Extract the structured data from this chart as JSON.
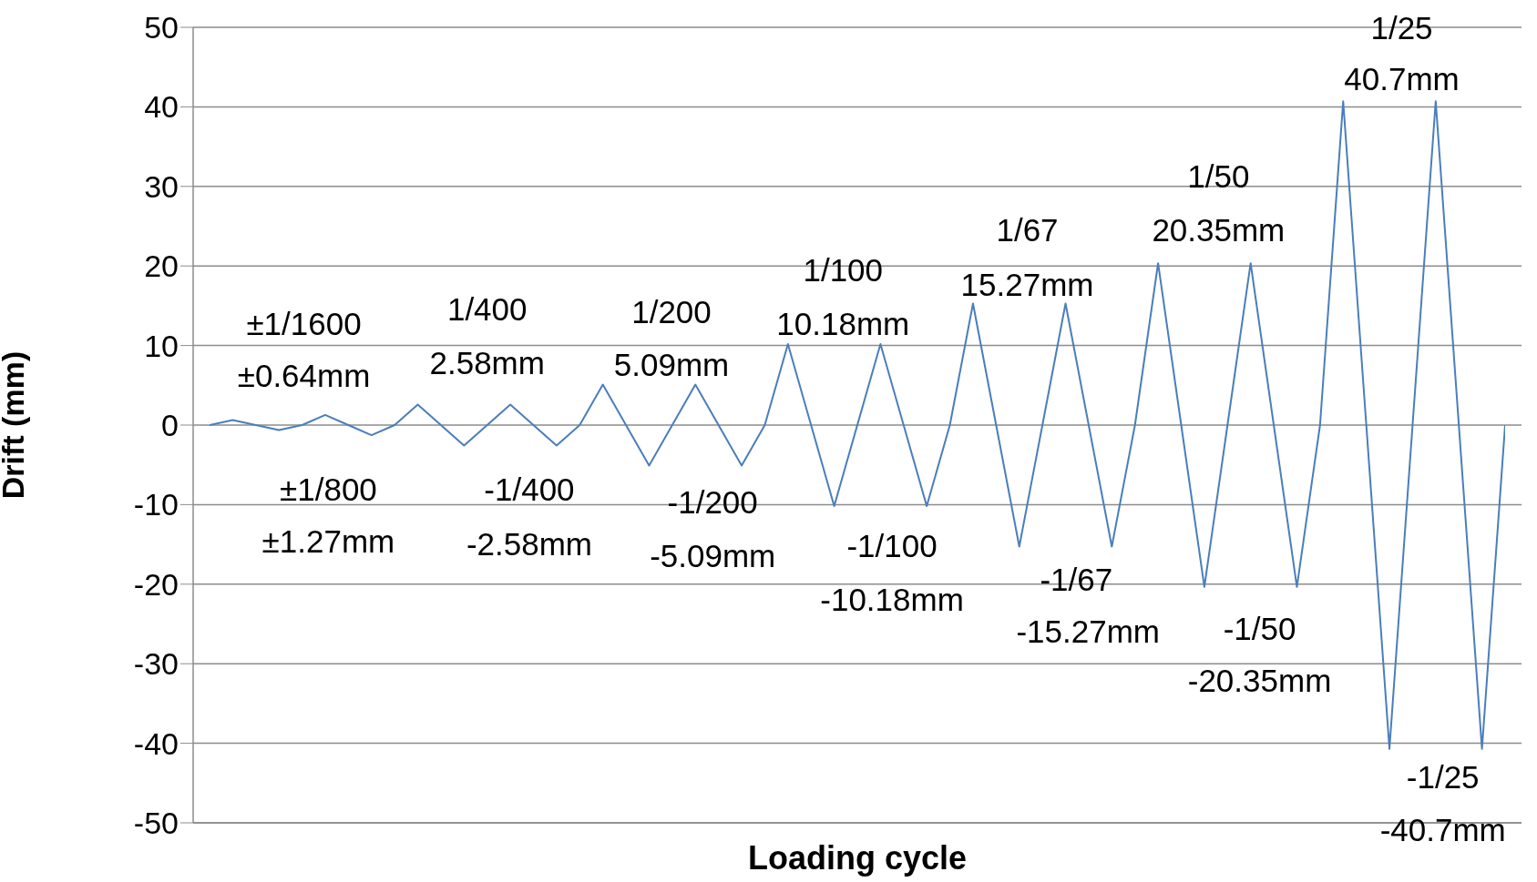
{
  "chart_data": {
    "type": "line",
    "xlabel": "Loading cycle",
    "ylabel": "Drift (mm)",
    "categories": [
      null,
      null,
      null,
      null,
      null,
      null,
      null,
      null,
      null,
      null,
      null,
      null,
      null,
      null,
      null,
      null,
      null,
      null,
      null,
      null,
      null,
      null,
      null,
      null,
      null,
      null,
      null,
      null,
      null,
      null,
      null,
      null,
      null,
      null,
      null,
      null,
      null,
      null,
      null,
      null,
      null,
      null,
      null,
      null,
      null,
      null,
      null,
      null,
      null,
      null,
      null,
      null,
      null,
      null,
      null,
      null,
      null
    ],
    "values": [
      0,
      0.64,
      0,
      -0.64,
      0,
      1.27,
      0,
      -1.27,
      0,
      2.58,
      0,
      -2.58,
      0,
      2.58,
      0,
      -2.58,
      0,
      5.09,
      0,
      -5.09,
      0,
      5.09,
      0,
      -5.09,
      0,
      10.18,
      0,
      -10.18,
      0,
      10.18,
      0,
      -10.18,
      0,
      15.27,
      0,
      -15.27,
      0,
      15.27,
      0,
      -15.27,
      0,
      20.35,
      0,
      -20.35,
      0,
      20.35,
      0,
      -20.35,
      0,
      40.7,
      0,
      -40.7,
      0,
      40.7,
      0,
      -40.7,
      0
    ],
    "color": "#4a7ebb",
    "ylim": [
      -50,
      50
    ],
    "yticks": [
      -50,
      -40,
      -30,
      -20,
      -10,
      0,
      10,
      20,
      30,
      40,
      50
    ],
    "grid": "y",
    "tick_labels": "y",
    "line_style": "solid",
    "annotations": [
      "±1/1600",
      "±0.64mm",
      "1/400",
      "2.58mm",
      "1/200",
      "5.09mm",
      "1/100",
      "10.18mm",
      "1/67",
      "15.27mm",
      "1/50",
      "20.35mm",
      "1/25",
      "40.7mm",
      "±1/800",
      "±1.27mm",
      "-1/400",
      "-2.58mm",
      "-1/200",
      "-5.09mm",
      "-1/100",
      "-10.18mm",
      "-1/67",
      "-15.27mm",
      "-1/50",
      "-20.35mm",
      "-1/25",
      "-40.7mm"
    ]
  }
}
